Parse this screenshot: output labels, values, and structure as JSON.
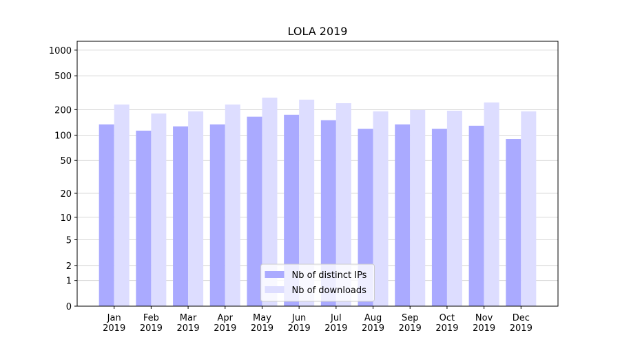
{
  "chart_data": {
    "type": "bar",
    "title": "LOLA 2019",
    "categories": [
      "Jan\n2019",
      "Feb\n2019",
      "Mar\n2019",
      "Apr\n2019",
      "May\n2019",
      "Jun\n2019",
      "Jul\n2019",
      "Aug\n2019",
      "Sep\n2019",
      "Oct\n2019",
      "Nov\n2019",
      "Dec\n2019"
    ],
    "series": [
      {
        "name": "Nb of distinct IPs",
        "color": "#aaaaff",
        "values": [
          134,
          113,
          127,
          134,
          165,
          174,
          150,
          119,
          134,
          119,
          129,
          90
        ]
      },
      {
        "name": "Nb of downloads",
        "color": "#ddddff",
        "values": [
          230,
          180,
          191,
          230,
          277,
          262,
          238,
          191,
          198,
          194,
          243,
          191
        ]
      }
    ],
    "yscale": "log1p",
    "ylim": [
      0,
      1270
    ],
    "yticks": [
      0,
      1,
      2,
      5,
      10,
      20,
      50,
      100,
      200,
      500,
      1000
    ],
    "grid": true,
    "legend": "lower center"
  }
}
